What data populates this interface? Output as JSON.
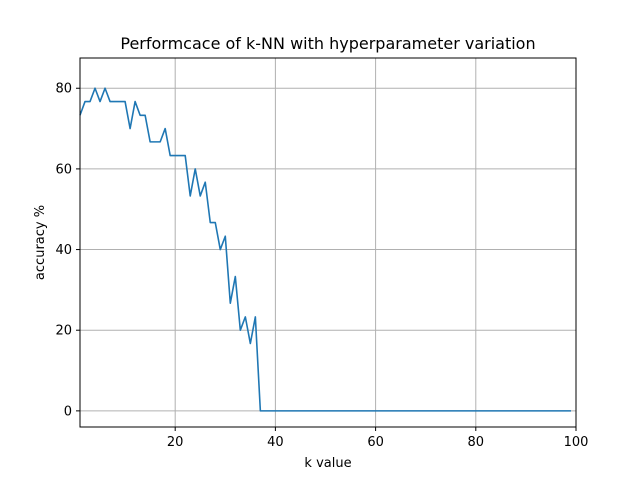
{
  "chart_data": {
    "type": "line",
    "title": "Performcace of k-NN with hyperparameter variation",
    "xlabel": "k value",
    "ylabel": "accuracy %",
    "xlim": [
      1,
      100
    ],
    "ylim": [
      -4,
      87.5
    ],
    "xticks": [
      20,
      40,
      60,
      80,
      100
    ],
    "yticks": [
      0,
      20,
      40,
      60,
      80
    ],
    "grid": true,
    "series_color": "#1f77b4",
    "series": [
      {
        "x": [
          1,
          2,
          3,
          4,
          5,
          6,
          7,
          8,
          9,
          10,
          11,
          12,
          13,
          14,
          15,
          16,
          17,
          18,
          19,
          20,
          21,
          22,
          23,
          24,
          25,
          26,
          27,
          28,
          29,
          30,
          31,
          32,
          33,
          34,
          35,
          36,
          37,
          38,
          39,
          40,
          41,
          42,
          43,
          44,
          45,
          46,
          47,
          48,
          49,
          50,
          51,
          52,
          53,
          54,
          55,
          56,
          57,
          58,
          59,
          60,
          61,
          62,
          63,
          64,
          65,
          66,
          67,
          68,
          69,
          70,
          71,
          72,
          73,
          74,
          75,
          76,
          77,
          78,
          79,
          80,
          81,
          82,
          83,
          84,
          85,
          86,
          87,
          88,
          89,
          90,
          91,
          92,
          93,
          94,
          95,
          96,
          97,
          98,
          99
        ],
        "values": [
          73.3,
          76.7,
          76.7,
          80,
          76.7,
          80,
          76.7,
          76.7,
          76.7,
          76.7,
          70,
          76.7,
          73.3,
          73.3,
          66.7,
          66.7,
          66.7,
          70,
          63.3,
          63.3,
          63.3,
          63.3,
          53.3,
          60,
          53.3,
          56.7,
          46.7,
          46.7,
          40,
          43.3,
          26.7,
          33.3,
          20,
          23.3,
          16.7,
          23.3,
          0,
          0,
          0,
          0,
          0,
          0,
          0,
          0,
          0,
          0,
          0,
          0,
          0,
          0,
          0,
          0,
          0,
          0,
          0,
          0,
          0,
          0,
          0,
          0,
          0,
          0,
          0,
          0,
          0,
          0,
          0,
          0,
          0,
          0,
          0,
          0,
          0,
          0,
          0,
          0,
          0,
          0,
          0,
          0,
          0,
          0,
          0,
          0,
          0,
          0,
          0,
          0,
          0,
          0,
          0,
          0,
          0,
          0,
          0,
          0,
          0,
          0,
          0
        ]
      }
    ]
  }
}
